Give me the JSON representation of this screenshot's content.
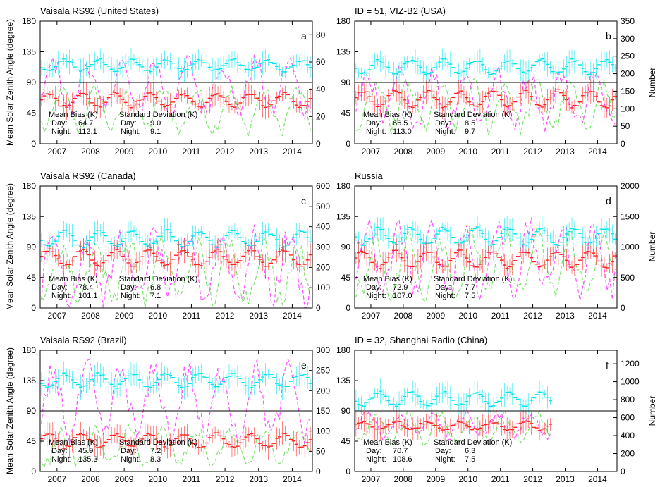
{
  "figure": {
    "left_ylabel": "Mean Solar Zenith Angle (degree)",
    "right_ylabel": "Number",
    "stats_header_bias": "Mean Bias (K)",
    "stats_header_sd": "Standard Deviation (K)",
    "day_label": "Day:",
    "night_label": "Night:",
    "colors": {
      "day_zenith": "#ff2020",
      "night_zenith": "#00e5ee",
      "day_count": "#ff33ff",
      "night_count": "#66dd55",
      "reference_line": "#000000"
    }
  },
  "chart_data": [
    {
      "type": "line",
      "letter": "a",
      "title": "Vaisala RS92 (United States)",
      "x_ticks": [
        "2007",
        "2008",
        "2009",
        "2010",
        "2011",
        "2012",
        "2013",
        "2014"
      ],
      "xlim": [
        2006.5,
        2014.6
      ],
      "y_left_ticks": [
        "0",
        "45",
        "90",
        "135",
        "180"
      ],
      "ylim_left": [
        0,
        180
      ],
      "y_right_ticks": [
        "0",
        "20",
        "40",
        "60",
        "80"
      ],
      "ylim_right": [
        0,
        90
      ],
      "reference_line": 90,
      "zenith_model": {
        "day_mean": 64,
        "day_amp": 10,
        "night_mean": 115,
        "night_amp": 8
      },
      "count_model": {
        "day_mean": 42,
        "day_amp": 18,
        "night_mean": 25,
        "night_amp": 14
      },
      "stats": {
        "bias_day": "64.7",
        "bias_night": "112.1",
        "sd_day": "9.0",
        "sd_night": "9.1"
      },
      "series": [
        {
          "name": "Day zenith angle",
          "axis": "left",
          "style": "error-bars"
        },
        {
          "name": "Night zenith angle",
          "axis": "left",
          "style": "error-bars"
        },
        {
          "name": "Day count",
          "axis": "right",
          "style": "dashed"
        },
        {
          "name": "Night count",
          "axis": "right",
          "style": "dashed"
        }
      ]
    },
    {
      "type": "line",
      "letter": "b",
      "title": "ID = 51, VIZ-B2 (USA)",
      "x_ticks": [
        "2007",
        "2008",
        "2009",
        "2010",
        "2011",
        "2012",
        "2013",
        "2014"
      ],
      "xlim": [
        2006.5,
        2014.6
      ],
      "y_left_ticks": [
        "0",
        "45",
        "90",
        "135",
        "180"
      ],
      "ylim_left": [
        0,
        180
      ],
      "y_right_ticks": [
        "0",
        "50",
        "100",
        "150",
        "200",
        "250",
        "300",
        "350"
      ],
      "ylim_right": [
        0,
        350
      ],
      "reference_line": 90,
      "zenith_model": {
        "day_mean": 66,
        "day_amp": 12,
        "night_mean": 113,
        "night_amp": 10
      },
      "count_model": {
        "day_mean": 130,
        "day_amp": 70,
        "night_mean": 110,
        "night_amp": 60
      },
      "stats": {
        "bias_day": "66.5",
        "bias_night": "113.0",
        "sd_day": "8.5",
        "sd_night": "9.7"
      },
      "series": [
        {
          "name": "Day zenith angle",
          "axis": "left",
          "style": "error-bars"
        },
        {
          "name": "Night zenith angle",
          "axis": "left",
          "style": "error-bars"
        },
        {
          "name": "Day count",
          "axis": "right",
          "style": "dashed"
        },
        {
          "name": "Night count",
          "axis": "right",
          "style": "dashed"
        }
      ]
    },
    {
      "type": "line",
      "letter": "c",
      "title": "Vaisala RS92 (Canada)",
      "x_ticks": [
        "2007",
        "2008",
        "2009",
        "2010",
        "2011",
        "2012",
        "2013",
        "2014"
      ],
      "xlim": [
        2006.5,
        2014.6
      ],
      "y_left_ticks": [
        "0",
        "45",
        "90",
        "135",
        "180"
      ],
      "ylim_left": [
        0,
        180
      ],
      "y_right_ticks": [
        "0",
        "100",
        "200",
        "300",
        "400",
        "500",
        "600"
      ],
      "ylim_right": [
        0,
        600
      ],
      "reference_line": 90,
      "zenith_model": {
        "day_mean": 74,
        "day_amp": 12,
        "night_mean": 102,
        "night_amp": 12
      },
      "count_model": {
        "day_mean": 200,
        "day_amp": 150,
        "night_mean": 180,
        "night_amp": 130
      },
      "stats": {
        "bias_day": "78.4",
        "bias_night": "101.1",
        "sd_day": "6.8",
        "sd_night": "7.1"
      },
      "series": [
        {
          "name": "Day zenith angle",
          "axis": "left",
          "style": "error-bars"
        },
        {
          "name": "Night zenith angle",
          "axis": "left",
          "style": "error-bars"
        },
        {
          "name": "Day count",
          "axis": "right",
          "style": "dashed"
        },
        {
          "name": "Night count",
          "axis": "right",
          "style": "dashed"
        }
      ]
    },
    {
      "type": "line",
      "letter": "d",
      "title": "Russia",
      "x_ticks": [
        "2007",
        "2008",
        "2009",
        "2010",
        "2011",
        "2012",
        "2013",
        "2014"
      ],
      "xlim": [
        2006.5,
        2014.6
      ],
      "y_left_ticks": [
        "0",
        "45",
        "90",
        "135",
        "180"
      ],
      "ylim_left": [
        0,
        180
      ],
      "y_right_ticks": [
        "0",
        "500",
        "1000",
        "1500",
        "2000"
      ],
      "ylim_right": [
        0,
        2000
      ],
      "reference_line": 90,
      "zenith_model": {
        "day_mean": 72,
        "day_amp": 12,
        "night_mean": 106,
        "night_amp": 12
      },
      "count_model": {
        "day_mean": 800,
        "day_amp": 500,
        "night_mean": 700,
        "night_amp": 450
      },
      "stats": {
        "bias_day": "72.9",
        "bias_night": "107.0",
        "sd_day": "7.7",
        "sd_night": "7.5"
      },
      "series": [
        {
          "name": "Day zenith angle",
          "axis": "left",
          "style": "error-bars"
        },
        {
          "name": "Night zenith angle",
          "axis": "left",
          "style": "error-bars"
        },
        {
          "name": "Day count",
          "axis": "right",
          "style": "dashed"
        },
        {
          "name": "Night count",
          "axis": "right",
          "style": "dashed"
        }
      ]
    },
    {
      "type": "line",
      "letter": "e",
      "title": "Vaisala RS92 (Brazil)",
      "x_ticks": [
        "2007",
        "2008",
        "2009",
        "2010",
        "2011",
        "2012",
        "2013",
        "2014"
      ],
      "xlim": [
        2006.5,
        2014.6
      ],
      "y_left_ticks": [
        "0",
        "45",
        "90",
        "135",
        "180"
      ],
      "ylim_left": [
        0,
        180
      ],
      "y_right_ticks": [
        "0",
        "50",
        "100",
        "150",
        "200",
        "250",
        "300"
      ],
      "ylim_right": [
        0,
        300
      ],
      "reference_line": 90,
      "zenith_model": {
        "day_mean": 46,
        "day_amp": 10,
        "night_mean": 135,
        "night_amp": 10
      },
      "count_model": {
        "day_mean": 170,
        "day_amp": 80,
        "night_mean": 60,
        "night_amp": 40
      },
      "stats": {
        "bias_day": "45.9",
        "bias_night": "135.3",
        "sd_day": "7.2",
        "sd_night": "8.3"
      },
      "series": [
        {
          "name": "Day zenith angle",
          "axis": "left",
          "style": "error-bars"
        },
        {
          "name": "Night zenith angle",
          "axis": "left",
          "style": "error-bars"
        },
        {
          "name": "Day count",
          "axis": "right",
          "style": "dashed"
        },
        {
          "name": "Night count",
          "axis": "right",
          "style": "dashed"
        }
      ]
    },
    {
      "type": "line",
      "letter": "f",
      "title": "ID = 32, Shanghai Radio (China)",
      "x_ticks": [
        "2007",
        "2008",
        "2009",
        "2010",
        "2011",
        "2012",
        "2013",
        "2014"
      ],
      "xlim": [
        2006.5,
        2014.6
      ],
      "x_end": 2012.6,
      "y_left_ticks": [
        "0",
        "45",
        "90",
        "135",
        "180"
      ],
      "ylim_left": [
        0,
        180
      ],
      "y_right_ticks": [
        "0",
        "200",
        "400",
        "600",
        "800",
        "1000",
        "1200"
      ],
      "ylim_right": [
        0,
        1350
      ],
      "reference_line": 90,
      "zenith_model": {
        "day_mean": 68,
        "day_amp": 6,
        "night_mean": 108,
        "night_amp": 10
      },
      "count_model": {
        "day_mean": 520,
        "day_amp": 120,
        "night_mean": 480,
        "night_amp": 140
      },
      "stats": {
        "bias_day": "70.7",
        "bias_night": "108.6",
        "sd_day": "6.3",
        "sd_night": "7.5"
      },
      "series": [
        {
          "name": "Day zenith angle",
          "axis": "left",
          "style": "error-bars"
        },
        {
          "name": "Night zenith angle",
          "axis": "left",
          "style": "error-bars"
        },
        {
          "name": "Day count",
          "axis": "right",
          "style": "dashed"
        },
        {
          "name": "Night count",
          "axis": "right",
          "style": "dashed"
        }
      ]
    }
  ]
}
